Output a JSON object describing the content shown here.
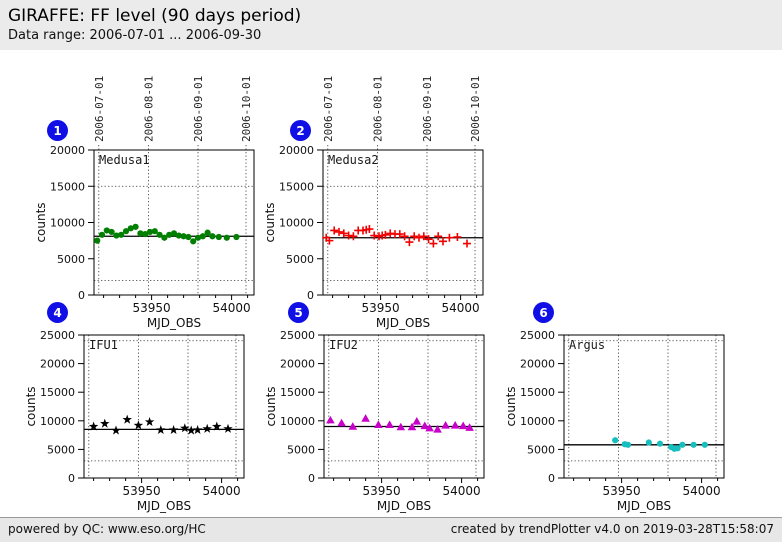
{
  "header": {
    "title": "GIRAFFE: FF level (90 days period)",
    "subtitle": "Data range: 2006-07-01 ... 2006-09-30"
  },
  "footer": {
    "left": "powered by QC: www.eso.org/HC",
    "right": "created by trendPlotter v4.0 on 2019-03-28T15:58:07"
  },
  "colors": {
    "badge_blue": "#1010e6",
    "medusa1_green": "#007f00",
    "medusa2_red": "#f40000",
    "ifu1_black": "#000000",
    "ifu2_magenta": "#c902c9",
    "argus_cyan": "#17bebe",
    "header_bg": "#ebebeb",
    "footer_bg": "#e7e7e7"
  },
  "chart_data": [
    {
      "badge": "1",
      "label": "Medusa1",
      "type": "scatter",
      "marker": "circle",
      "color": "#007f00",
      "xlabel": "MJD_OBS",
      "ylabel": "counts",
      "xlim": [
        53914,
        54014
      ],
      "ylim": [
        0,
        20000
      ],
      "xticks": [
        53950,
        54000
      ],
      "yticks": [
        0,
        5000,
        10000,
        15000,
        20000
      ],
      "minor_xtick_step": 10,
      "month_lines": [
        53917,
        53948,
        53979,
        54009
      ],
      "top_date_labels": [
        "2006-07-01",
        "2006-08-01",
        "2006-09-01",
        "2006-10-01"
      ],
      "avg_line": 8100,
      "thresholds": [
        2000,
        15000
      ],
      "x": [
        53916,
        53919,
        53922,
        53925,
        53928,
        53931,
        53934,
        53937,
        53940,
        53943,
        53946,
        53949,
        53952,
        53955,
        53958,
        53961,
        53964,
        53967,
        53970,
        53973,
        53976,
        53979,
        53982,
        53985,
        53988,
        53992,
        53997,
        54003
      ],
      "y": [
        7500,
        8300,
        8900,
        8700,
        8200,
        8300,
        8800,
        9200,
        9400,
        8500,
        8400,
        8700,
        8800,
        8300,
        7900,
        8300,
        8500,
        8200,
        8100,
        8000,
        7400,
        7900,
        8100,
        8600,
        8100,
        8000,
        7900,
        8000
      ]
    },
    {
      "badge": "2",
      "label": "Medusa2",
      "type": "scatter",
      "marker": "plus",
      "color": "#f40000",
      "xlabel": "MJD_OBS",
      "ylabel": "counts",
      "xlim": [
        53914,
        54014
      ],
      "ylim": [
        0,
        20000
      ],
      "xticks": [
        53950,
        54000
      ],
      "yticks": [
        0,
        5000,
        10000,
        15000,
        20000
      ],
      "minor_xtick_step": 10,
      "month_lines": [
        53917,
        53948,
        53979,
        54009
      ],
      "top_date_labels": [
        "2006-07-01",
        "2006-08-01",
        "2006-09-01",
        "2006-10-01"
      ],
      "avg_line": 7900,
      "thresholds": [
        2000,
        15000
      ],
      "x": [
        53916,
        53918,
        53921,
        53924,
        53927,
        53930,
        53933,
        53936,
        53939,
        53941,
        53943,
        53946,
        53949,
        53951,
        53953,
        53956,
        53959,
        53962,
        53965,
        53968,
        53971,
        53974,
        53977,
        53980,
        53983,
        53986,
        53989,
        53993,
        53998,
        54004
      ],
      "y": [
        7900,
        7500,
        8900,
        8700,
        8500,
        8200,
        8100,
        8900,
        8900,
        9000,
        9100,
        8200,
        8100,
        8200,
        8300,
        8500,
        8400,
        8400,
        8100,
        7300,
        8100,
        7900,
        8100,
        7700,
        7100,
        8100,
        7400,
        7900,
        8000,
        7100
      ]
    },
    {
      "badge": "4",
      "label": "IFU1",
      "type": "scatter",
      "marker": "star",
      "color": "#000000",
      "xlabel": "MJD_OBS",
      "ylabel": "counts",
      "xlim": [
        53914,
        54014
      ],
      "ylim": [
        0,
        25000
      ],
      "xticks": [
        53950,
        54000
      ],
      "yticks": [
        0,
        5000,
        10000,
        15000,
        20000,
        25000
      ],
      "minor_xtick_step": 10,
      "month_lines": [
        53917,
        53948,
        53979,
        54009
      ],
      "top_date_labels": [],
      "avg_line": 8500,
      "thresholds": [
        3000,
        24000
      ],
      "x": [
        53920,
        53927,
        53934,
        53941,
        53948,
        53955,
        53962,
        53970,
        53977,
        53981,
        53985,
        53991,
        53997,
        54004
      ],
      "y": [
        9000,
        9500,
        8300,
        10200,
        9200,
        9800,
        8400,
        8400,
        8700,
        8300,
        8400,
        8600,
        9000,
        8600
      ]
    },
    {
      "badge": "5",
      "label": "IFU2",
      "type": "scatter",
      "marker": "triangle",
      "color": "#c902c9",
      "xlabel": "MJD_OBS",
      "ylabel": "counts",
      "xlim": [
        53914,
        54014
      ],
      "ylim": [
        0,
        25000
      ],
      "xticks": [
        53950,
        54000
      ],
      "yticks": [
        0,
        5000,
        10000,
        15000,
        20000,
        25000
      ],
      "minor_xtick_step": 10,
      "month_lines": [
        53917,
        53948,
        53979,
        54009
      ],
      "top_date_labels": [],
      "avg_line": 9000,
      "thresholds": [
        3000,
        24000
      ],
      "x": [
        53918,
        53925,
        53932,
        53940,
        53948,
        53955,
        53962,
        53969,
        53972,
        53977,
        53980,
        53985,
        53990,
        53996,
        54001,
        54005
      ],
      "y": [
        10100,
        9600,
        9000,
        10400,
        9300,
        9300,
        8900,
        8900,
        9900,
        9100,
        8700,
        8500,
        9200,
        9200,
        9100,
        8800
      ]
    },
    {
      "badge": "6",
      "label": "Argus",
      "type": "scatter",
      "marker": "circle",
      "color": "#17bebe",
      "xlabel": "MJD_OBS",
      "ylabel": "counts",
      "xlim": [
        53914,
        54014
      ],
      "ylim": [
        0,
        25000
      ],
      "xticks": [
        53950,
        54000
      ],
      "yticks": [
        0,
        5000,
        10000,
        15000,
        20000,
        25000
      ],
      "minor_xtick_step": 10,
      "month_lines": [
        53917,
        53948,
        53979,
        54009
      ],
      "top_date_labels": [],
      "avg_line": 5800,
      "thresholds": [
        3000,
        24000
      ],
      "x": [
        53946,
        53952,
        53954,
        53967,
        53974,
        53981,
        53983,
        53985,
        53988,
        53995,
        54002
      ],
      "y": [
        6600,
        5900,
        5800,
        6200,
        6000,
        5400,
        5100,
        5200,
        5800,
        5800,
        5800
      ]
    }
  ]
}
